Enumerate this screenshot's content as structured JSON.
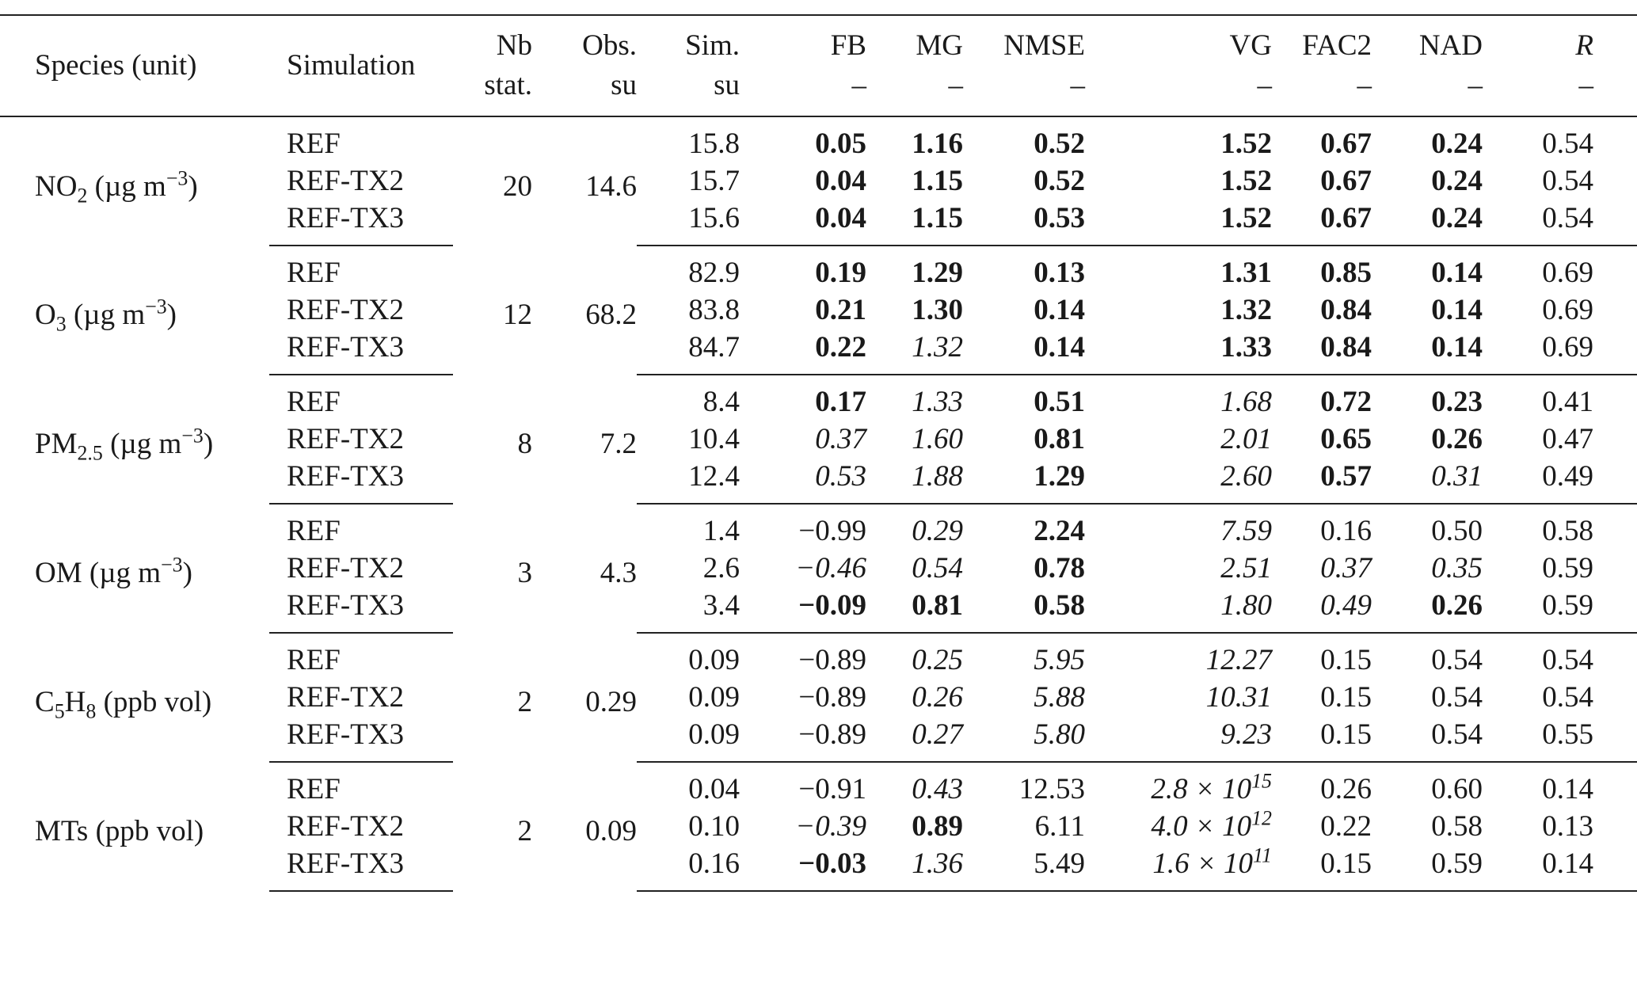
{
  "headers": {
    "species": "Species (unit)",
    "simulation": "Simulation",
    "nb_line1": "Nb",
    "nb_line2": "stat.",
    "obs_line1": "Obs.",
    "obs_line2": "su",
    "sim_line1": "Sim.",
    "sim_line2": "su",
    "fb": "FB",
    "mg": "MG",
    "nmse": "NMSE",
    "vg": "VG",
    "fac2": "FAC2",
    "nad": "NAD",
    "r": "R",
    "dash": "–"
  },
  "groups": [
    {
      "species_base": "NO",
      "species_sub": "2",
      "species_unit": "(µg m",
      "species_sup": "−3",
      "species_close": ")",
      "nb": "20",
      "obs": "14.6",
      "rows": [
        {
          "sim_name": "REF",
          "sim": "15.8",
          "fb": "0.05",
          "mg": "1.16",
          "nmse": "0.52",
          "vg": "1.52",
          "fac2": "0.67",
          "nad": "0.24",
          "r": "0.54"
        },
        {
          "sim_name": "REF-TX2",
          "sim": "15.7",
          "fb": "0.04",
          "mg": "1.15",
          "nmse": "0.52",
          "vg": "1.52",
          "fac2": "0.67",
          "nad": "0.24",
          "r": "0.54"
        },
        {
          "sim_name": "REF-TX3",
          "sim": "15.6",
          "fb": "0.04",
          "mg": "1.15",
          "nmse": "0.53",
          "vg": "1.52",
          "fac2": "0.67",
          "nad": "0.24",
          "r": "0.54"
        }
      ]
    },
    {
      "species_base": "O",
      "species_sub": "3",
      "species_unit": "(µg m",
      "species_sup": "−3",
      "species_close": ")",
      "nb": "12",
      "obs": "68.2",
      "rows": [
        {
          "sim_name": "REF",
          "sim": "82.9",
          "fb": "0.19",
          "mg": "1.29",
          "nmse": "0.13",
          "vg": "1.31",
          "fac2": "0.85",
          "nad": "0.14",
          "r": "0.69"
        },
        {
          "sim_name": "REF-TX2",
          "sim": "83.8",
          "fb": "0.21",
          "mg": "1.30",
          "nmse": "0.14",
          "vg": "1.32",
          "fac2": "0.84",
          "nad": "0.14",
          "r": "0.69"
        },
        {
          "sim_name": "REF-TX3",
          "sim": "84.7",
          "fb": "0.22",
          "mg": "1.32",
          "nmse": "0.14",
          "vg": "1.33",
          "fac2": "0.84",
          "nad": "0.14",
          "r": "0.69"
        }
      ]
    },
    {
      "species_base": "PM",
      "species_sub": "2.5",
      "species_unit": "(µg m",
      "species_sup": "−3",
      "species_close": ")",
      "nb": "8",
      "obs": "7.2",
      "rows": [
        {
          "sim_name": "REF",
          "sim": "8.4",
          "fb": "0.17",
          "mg": "1.33",
          "nmse": "0.51",
          "vg": "1.68",
          "fac2": "0.72",
          "nad": "0.23",
          "r": "0.41"
        },
        {
          "sim_name": "REF-TX2",
          "sim": "10.4",
          "fb": "0.37",
          "mg": "1.60",
          "nmse": "0.81",
          "vg": "2.01",
          "fac2": "0.65",
          "nad": "0.26",
          "r": "0.47"
        },
        {
          "sim_name": "REF-TX3",
          "sim": "12.4",
          "fb": "0.53",
          "mg": "1.88",
          "nmse": "1.29",
          "vg": "2.60",
          "fac2": "0.57",
          "nad": "0.31",
          "r": "0.49"
        }
      ]
    },
    {
      "species_base": "OM",
      "species_sub": "",
      "species_unit": "(µg m",
      "species_sup": "−3",
      "species_close": ")",
      "nb": "3",
      "obs": "4.3",
      "rows": [
        {
          "sim_name": "REF",
          "sim": "1.4",
          "fb": "−0.99",
          "mg": "0.29",
          "nmse": "2.24",
          "vg": "7.59",
          "fac2": "0.16",
          "nad": "0.50",
          "r": "0.58"
        },
        {
          "sim_name": "REF-TX2",
          "sim": "2.6",
          "fb": "−0.46",
          "mg": "0.54",
          "nmse": "0.78",
          "vg": "2.51",
          "fac2": "0.37",
          "nad": "0.35",
          "r": "0.59"
        },
        {
          "sim_name": "REF-TX3",
          "sim": "3.4",
          "fb": "−0.09",
          "mg": "0.81",
          "nmse": "0.58",
          "vg": "1.80",
          "fac2": "0.49",
          "nad": "0.26",
          "r": "0.59"
        }
      ]
    },
    {
      "species_pre": "C",
      "species_pre_sub": "5",
      "species_base": "H",
      "species_sub": "8",
      "species_unit": "(ppb vol)",
      "species_sup": "",
      "species_close": "",
      "nb": "2",
      "obs": "0.29",
      "rows": [
        {
          "sim_name": "REF",
          "sim": "0.09",
          "fb": "−0.89",
          "mg": "0.25",
          "nmse": "5.95",
          "vg": "12.27",
          "fac2": "0.15",
          "nad": "0.54",
          "r": "0.54"
        },
        {
          "sim_name": "REF-TX2",
          "sim": "0.09",
          "fb": "−0.89",
          "mg": "0.26",
          "nmse": "5.88",
          "vg": "10.31",
          "fac2": "0.15",
          "nad": "0.54",
          "r": "0.54"
        },
        {
          "sim_name": "REF-TX3",
          "sim": "0.09",
          "fb": "−0.89",
          "mg": "0.27",
          "nmse": "5.80",
          "vg": "9.23",
          "fac2": "0.15",
          "nad": "0.54",
          "r": "0.55"
        }
      ]
    },
    {
      "species_base": "MTs",
      "species_sub": "",
      "species_unit": "(ppb vol)",
      "species_sup": "",
      "species_close": "",
      "nb": "2",
      "obs": "0.09",
      "rows": [
        {
          "sim_name": "REF",
          "sim": "0.04",
          "fb": "−0.91",
          "mg": "0.43",
          "nmse": "12.53",
          "vg_mant": "2.8 × 10",
          "vg_exp": "15",
          "fac2": "0.26",
          "nad": "0.60",
          "r": "0.14"
        },
        {
          "sim_name": "REF-TX2",
          "sim": "0.10",
          "fb": "−0.39",
          "mg": "0.89",
          "nmse": "6.11",
          "vg_mant": "4.0 × 10",
          "vg_exp": "12",
          "fac2": "0.22",
          "nad": "0.58",
          "r": "0.13"
        },
        {
          "sim_name": "REF-TX3",
          "sim": "0.16",
          "fb": "−0.03",
          "mg": "1.36",
          "nmse": "5.49",
          "vg_mant": "1.6 × 10",
          "vg_exp": "11",
          "fac2": "0.15",
          "nad": "0.59",
          "r": "0.14"
        }
      ]
    }
  ]
}
